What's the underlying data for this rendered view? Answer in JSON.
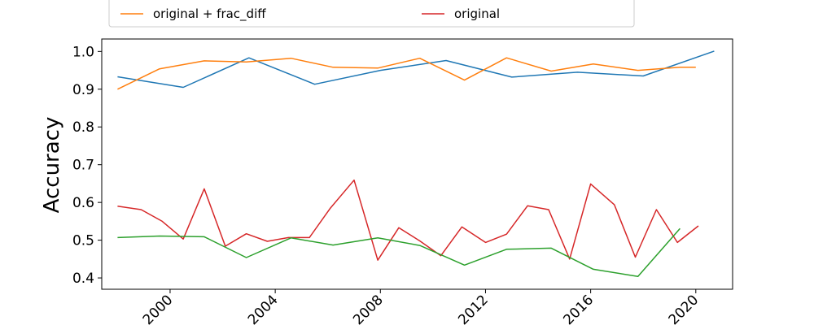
{
  "chart_data": {
    "type": "line",
    "title": "",
    "xlabel": "",
    "ylabel": "Accuracy",
    "xlim": [
      1997.4,
      2021.4
    ],
    "ylim": [
      0.37,
      1.033
    ],
    "x_ticks": [
      2000,
      2004,
      2008,
      2012,
      2016,
      2020
    ],
    "x_tick_labels": [
      "2000",
      "2004",
      "2008",
      "2012",
      "2016",
      "2020"
    ],
    "y_ticks": [
      0.4,
      0.5,
      0.6,
      0.7,
      0.8,
      0.9,
      1.0
    ],
    "y_tick_labels": [
      "0.4",
      "0.5",
      "0.6",
      "0.7",
      "0.8",
      "0.9",
      "1.0"
    ],
    "grid": false,
    "legend_placement": "top",
    "legend": [
      {
        "label": "original + frac_diff",
        "color": "#ff7f0e"
      },
      {
        "label": "original",
        "color": "#d62728"
      }
    ],
    "series": [
      {
        "color": "#1f77b4",
        "points": [
          [
            1998.0,
            0.933
          ],
          [
            2000.5,
            0.905
          ],
          [
            2003.0,
            0.983
          ],
          [
            2005.5,
            0.913
          ],
          [
            2008.0,
            0.95
          ],
          [
            2010.5,
            0.976
          ],
          [
            2013.0,
            0.932
          ],
          [
            2015.5,
            0.945
          ],
          [
            2018.0,
            0.935
          ],
          [
            2020.7,
            1.001
          ]
        ]
      },
      {
        "name": "original + frac_diff",
        "color": "#ff7f0e",
        "points": [
          [
            1998.0,
            0.9
          ],
          [
            1999.6,
            0.954
          ],
          [
            2001.3,
            0.975
          ],
          [
            2002.9,
            0.972
          ],
          [
            2004.6,
            0.982
          ],
          [
            2006.2,
            0.958
          ],
          [
            2007.9,
            0.956
          ],
          [
            2009.5,
            0.982
          ],
          [
            2011.2,
            0.924
          ],
          [
            2012.8,
            0.983
          ],
          [
            2014.5,
            0.948
          ],
          [
            2016.1,
            0.967
          ],
          [
            2017.8,
            0.95
          ],
          [
            2019.4,
            0.958
          ],
          [
            2020.0,
            0.958
          ]
        ]
      },
      {
        "name": "original",
        "color": "#d62728",
        "points": [
          [
            1998.0,
            0.59
          ],
          [
            1998.9,
            0.581
          ],
          [
            1999.7,
            0.55
          ],
          [
            2000.5,
            0.503
          ],
          [
            2001.3,
            0.636
          ],
          [
            2002.1,
            0.484
          ],
          [
            2002.9,
            0.517
          ],
          [
            2003.7,
            0.497
          ],
          [
            2004.5,
            0.507
          ],
          [
            2005.3,
            0.507
          ],
          [
            2006.1,
            0.585
          ],
          [
            2007.0,
            0.659
          ],
          [
            2007.9,
            0.447
          ],
          [
            2008.7,
            0.533
          ],
          [
            2009.5,
            0.498
          ],
          [
            2010.3,
            0.459
          ],
          [
            2011.1,
            0.535
          ],
          [
            2012.0,
            0.494
          ],
          [
            2012.8,
            0.516
          ],
          [
            2013.6,
            0.591
          ],
          [
            2014.4,
            0.581
          ],
          [
            2015.2,
            0.45
          ],
          [
            2016.0,
            0.649
          ],
          [
            2016.9,
            0.594
          ],
          [
            2017.7,
            0.455
          ],
          [
            2018.5,
            0.581
          ],
          [
            2019.3,
            0.494
          ],
          [
            2020.1,
            0.538
          ]
        ]
      },
      {
        "color": "#2ca02c",
        "points": [
          [
            1998.0,
            0.507
          ],
          [
            1999.6,
            0.511
          ],
          [
            2001.3,
            0.509
          ],
          [
            2002.9,
            0.454
          ],
          [
            2004.6,
            0.506
          ],
          [
            2006.2,
            0.487
          ],
          [
            2007.9,
            0.506
          ],
          [
            2009.5,
            0.486
          ],
          [
            2011.2,
            0.434
          ],
          [
            2012.8,
            0.476
          ],
          [
            2014.5,
            0.479
          ],
          [
            2016.1,
            0.423
          ],
          [
            2017.8,
            0.404
          ],
          [
            2019.4,
            0.531
          ]
        ]
      }
    ]
  }
}
